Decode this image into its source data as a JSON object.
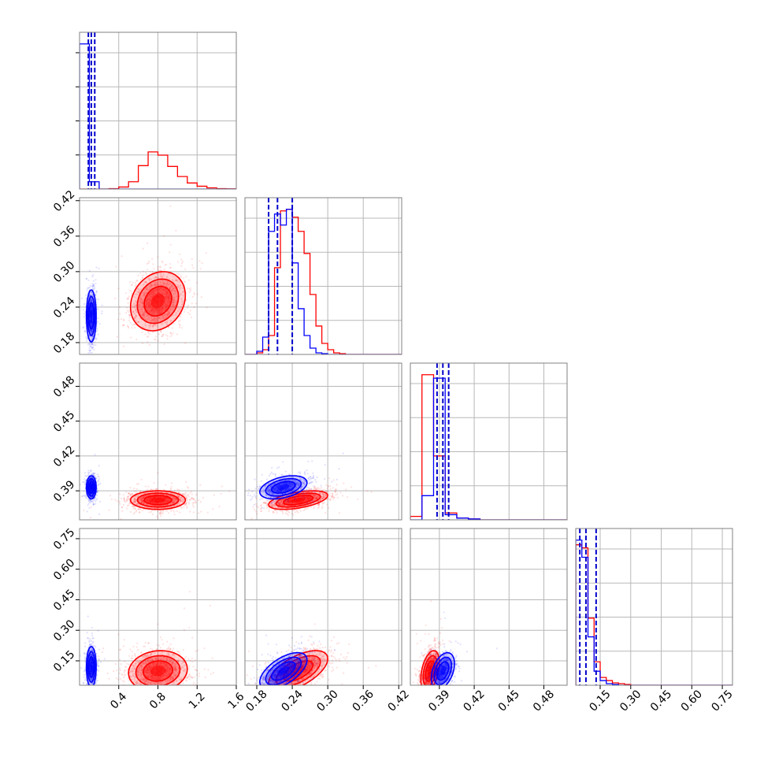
{
  "chart_data": {
    "type": "corner",
    "parameters": [
      "",
      "",
      "",
      ""
    ],
    "colors": {
      "a": "#ff0000",
      "b": "#0000ff",
      "quantile_line": "#0000cc"
    },
    "grid": true,
    "ranges": [
      [
        0.0,
        1.6
      ],
      [
        0.16,
        0.425
      ],
      [
        0.365,
        0.5
      ],
      [
        0.03,
        0.8
      ]
    ],
    "x_ticks": [
      {
        "values": [
          0.4,
          0.8,
          1.2,
          1.6
        ],
        "labels": [
          "0.4",
          "0.8",
          "1.2",
          "1.6"
        ]
      },
      {
        "values": [
          0.18,
          0.24,
          0.3,
          0.36,
          0.42
        ],
        "labels": [
          "0.18",
          "0.24",
          "0.30",
          "0.36",
          "0.42"
        ]
      },
      {
        "values": [
          0.39,
          0.42,
          0.45,
          0.48
        ],
        "labels": [
          "0.39",
          "0.42",
          "0.45",
          "0.48"
        ]
      },
      {
        "values": [
          0.15,
          0.3,
          0.45,
          0.6,
          0.75
        ],
        "labels": [
          "0.15",
          "0.30",
          "0.45",
          "0.60",
          "0.75"
        ]
      }
    ],
    "y_ticks": [
      null,
      {
        "values": [
          0.18,
          0.24,
          0.3,
          0.36,
          0.42
        ],
        "labels": [
          "0.18",
          "0.24",
          "0.30",
          "0.36",
          "0.42"
        ]
      },
      {
        "values": [
          0.39,
          0.42,
          0.45,
          0.48
        ],
        "labels": [
          "0.39",
          "0.42",
          "0.45",
          "0.48"
        ]
      },
      {
        "values": [
          0.15,
          0.3,
          0.45,
          0.6,
          0.75
        ],
        "labels": [
          "0.15",
          "0.30",
          "0.45",
          "0.60",
          "0.75"
        ]
      }
    ],
    "histograms": [
      {
        "param": 0,
        "bin_edges": [
          0.0,
          0.1,
          0.2,
          0.3,
          0.4,
          0.5,
          0.6,
          0.7,
          0.8,
          0.9,
          1.0,
          1.1,
          1.2,
          1.3,
          1.4,
          1.5,
          1.6
        ],
        "series": [
          {
            "color": "a",
            "counts": [
              0,
              0,
              0,
              0.01,
              0.05,
              0.18,
              0.58,
              0.92,
              0.84,
              0.56,
              0.31,
              0.15,
              0.07,
              0.03,
              0.01,
              0.005
            ]
          },
          {
            "color": "b",
            "counts": [
              3.6,
              0.18,
              0,
              0,
              0,
              0,
              0,
              0,
              0,
              0,
              0,
              0,
              0,
              0,
              0,
              0
            ]
          }
        ],
        "quantiles": [
          0.09,
          0.12,
          0.155
        ]
      },
      {
        "param": 1,
        "bin_edges": [
          0.16,
          0.17,
          0.18,
          0.19,
          0.2,
          0.21,
          0.22,
          0.23,
          0.24,
          0.25,
          0.26,
          0.27,
          0.28,
          0.29,
          0.3,
          0.31,
          0.32,
          0.33,
          0.34,
          0.35,
          0.36,
          0.37,
          0.38,
          0.39,
          0.4,
          0.41,
          0.42,
          0.425
        ],
        "series": [
          {
            "color": "a",
            "counts": [
              0,
              0,
              0.01,
              0.03,
              0.12,
              0.55,
              0.91,
              0.92,
              0.87,
              0.78,
              0.64,
              0.38,
              0.18,
              0.07,
              0.03,
              0.01,
              0.005,
              0,
              0,
              0,
              0,
              0,
              0,
              0,
              0,
              0,
              0
            ]
          },
          {
            "color": "b",
            "counts": [
              0,
              0,
              0.02,
              0.11,
              0.78,
              0.89,
              0.82,
              0.92,
              0.58,
              0.29,
              0.12,
              0.04,
              0.01,
              0.005,
              0,
              0,
              0,
              0,
              0,
              0,
              0,
              0,
              0,
              0,
              0,
              0,
              0
            ]
          }
        ],
        "quantiles": [
          0.2,
          0.215,
          0.24
        ]
      },
      {
        "param": 2,
        "bin_edges": [
          0.365,
          0.375,
          0.385,
          0.395,
          0.405,
          0.415,
          0.425,
          0.435,
          0.445,
          0.455,
          0.465,
          0.475,
          0.485,
          0.495,
          0.5
        ],
        "series": [
          {
            "color": "a",
            "counts": [
              0.02,
              0.84,
              0.37,
              0.04,
              0.01,
              0.005,
              0,
              0,
              0,
              0,
              0,
              0,
              0,
              0
            ]
          },
          {
            "color": "b",
            "counts": [
              0,
              0.14,
              0.82,
              0.03,
              0.01,
              0.005,
              0,
              0,
              0,
              0,
              0,
              0,
              0,
              0
            ]
          }
        ],
        "quantiles": [
          0.388,
          0.393,
          0.398
        ]
      },
      {
        "param": 3,
        "bin_edges": [
          0.03,
          0.06,
          0.09,
          0.12,
          0.15,
          0.18,
          0.21,
          0.24,
          0.27,
          0.3,
          0.33,
          0.36,
          0.39,
          0.42,
          0.45,
          0.48,
          0.51,
          0.54,
          0.57,
          0.6,
          0.63,
          0.66,
          0.69,
          0.72,
          0.75,
          0.78,
          0.8
        ],
        "series": [
          {
            "color": "a",
            "counts": [
              0.9,
              0.88,
              0.43,
              0.15,
              0.05,
              0.03,
              0.015,
              0.01,
              0.005,
              0,
              0,
              0,
              0,
              0,
              0,
              0,
              0,
              0,
              0,
              0,
              0,
              0,
              0,
              0,
              0,
              0
            ]
          },
          {
            "color": "b",
            "counts": [
              0.93,
              0.82,
              0.31,
              0.09,
              0.03,
              0.01,
              0.005,
              0,
              0,
              0,
              0,
              0,
              0,
              0,
              0,
              0,
              0,
              0,
              0,
              0,
              0,
              0,
              0,
              0,
              0,
              0
            ]
          }
        ],
        "quantiles": [
          0.05,
          0.08,
          0.13
        ]
      }
    ],
    "scatter_panels": [
      {
        "x": 0,
        "y": 1,
        "clusters": [
          {
            "color": "a",
            "mean": [
              0.8,
              0.25
            ],
            "sd": [
              0.14,
              0.025
            ],
            "rho": 0.2,
            "contours": [
              1.0,
              1.5,
              2.0
            ]
          },
          {
            "color": "b",
            "mean": [
              0.12,
              0.225
            ],
            "sd": [
              0.025,
              0.022
            ],
            "rho": 0.0,
            "contours": [
              1.0,
              1.5,
              2.0
            ]
          }
        ]
      },
      {
        "x": 0,
        "y": 2,
        "clusters": [
          {
            "color": "a",
            "mean": [
              0.8,
              0.382
            ],
            "sd": [
              0.14,
              0.004
            ],
            "rho": 0.0,
            "contours": [
              1.0,
              1.5,
              2.0
            ]
          },
          {
            "color": "b",
            "mean": [
              0.12,
              0.393
            ],
            "sd": [
              0.025,
              0.005
            ],
            "rho": 0.0,
            "contours": [
              1.0,
              1.5,
              2.0
            ]
          }
        ]
      },
      {
        "x": 0,
        "y": 3,
        "clusters": [
          {
            "color": "a",
            "mean": [
              0.8,
              0.1
            ],
            "sd": [
              0.15,
              0.05
            ],
            "rho": 0.1,
            "contours": [
              1.0,
              1.5,
              2.0
            ]
          },
          {
            "color": "b",
            "mean": [
              0.12,
              0.12
            ],
            "sd": [
              0.025,
              0.05
            ],
            "rho": 0.0,
            "contours": [
              1.0,
              1.5,
              2.0
            ]
          }
        ]
      },
      {
        "x": 1,
        "y": 2,
        "clusters": [
          {
            "color": "a",
            "mean": [
              0.25,
              0.382
            ],
            "sd": [
              0.025,
              0.004
            ],
            "rho": 0.5,
            "contours": [
              1.0,
              1.5,
              2.0
            ]
          },
          {
            "color": "b",
            "mean": [
              0.225,
              0.393
            ],
            "sd": [
              0.02,
              0.005
            ],
            "rho": 0.4,
            "contours": [
              1.0,
              1.5,
              2.0
            ]
          }
        ]
      },
      {
        "x": 1,
        "y": 3,
        "clusters": [
          {
            "color": "a",
            "mean": [
              0.25,
              0.1
            ],
            "sd": [
              0.025,
              0.05
            ],
            "rho": 0.6,
            "contours": [
              1.0,
              1.5,
              2.0
            ]
          },
          {
            "color": "b",
            "mean": [
              0.225,
              0.1
            ],
            "sd": [
              0.02,
              0.045
            ],
            "rho": 0.6,
            "contours": [
              1.0,
              1.5,
              2.0
            ]
          }
        ]
      },
      {
        "x": 2,
        "y": 3,
        "clusters": [
          {
            "color": "a",
            "mean": [
              0.382,
              0.1
            ],
            "sd": [
              0.004,
              0.05
            ],
            "rho": 0.4,
            "contours": [
              1.0,
              1.5,
              2.0
            ]
          },
          {
            "color": "b",
            "mean": [
              0.393,
              0.1
            ],
            "sd": [
              0.005,
              0.045
            ],
            "rho": 0.4,
            "contours": [
              1.0,
              1.5,
              2.0
            ]
          }
        ]
      }
    ]
  }
}
